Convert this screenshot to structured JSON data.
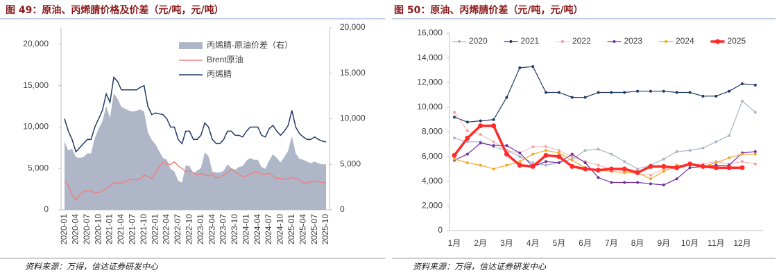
{
  "chart_data": [
    {
      "type": "line",
      "title": "图 49：原油、丙烯腈价格及价差（元/吨，元/吨）",
      "source": "资料来源：万得，信达证券研发中心",
      "categories": [
        "2020-01",
        null,
        null,
        "2020-04",
        null,
        null,
        "2020-07",
        null,
        null,
        "2020-10",
        null,
        null,
        "2021-01",
        null,
        null,
        "2021-04",
        null,
        null,
        "2021-07",
        null,
        null,
        "2021-10",
        null,
        null,
        "2022-01",
        null,
        null,
        "2022-04",
        null,
        null,
        "2022-07",
        null,
        null,
        "2022-10",
        null,
        null,
        "2023-01",
        null,
        null,
        "2023-04",
        null,
        null,
        "2023-07",
        null,
        null,
        "2023-10",
        null,
        null,
        "2024-01",
        null,
        null,
        "2024-04",
        null,
        null,
        "2024-07",
        null,
        null,
        "2024-10",
        null,
        null,
        "2025-01",
        null,
        null,
        "2025-04",
        null,
        null,
        "2025-07",
        null,
        null,
        "2025-10"
      ],
      "ylim": [
        0,
        22000
      ],
      "yticks": [
        0,
        {
          "value": 5000,
          "label": "5,000"
        },
        {
          "value": 10000,
          "label": "10,000"
        },
        {
          "value": 15000,
          "label": "15,000"
        },
        {
          "value": 20000,
          "label": "20,000"
        }
      ],
      "y2lim": [
        0,
        20000
      ],
      "y2ticks": [
        0,
        {
          "value": 5000,
          "label": "5,000"
        },
        {
          "value": 10000,
          "label": "10,000"
        },
        {
          "value": 15000,
          "label": "15,000"
        },
        {
          "value": 20000,
          "label": "20,000"
        }
      ],
      "legend": "upper right",
      "series": [
        {
          "name": "丙烯腈-原油价差（右）",
          "color": "#aeb6c8",
          "axis": "y2",
          "kind": "area",
          "values": [
            7500,
            6500,
            6700,
            5800,
            5700,
            5800,
            6200,
            6200,
            7900,
            8900,
            9700,
            11400,
            10100,
            12800,
            12200,
            11300,
            11100,
            10900,
            10800,
            10900,
            11000,
            10800,
            8500,
            7700,
            7200,
            6400,
            5700,
            5500,
            4500,
            4200,
            3200,
            3000,
            4900,
            4800,
            4000,
            4300,
            4600,
            6300,
            5900,
            4200,
            4100,
            4100,
            4300,
            5000,
            4600,
            4400,
            4700,
            4800,
            5400,
            5700,
            5500,
            5500,
            4700,
            4500,
            5400,
            6100,
            5700,
            5200,
            5800,
            6500,
            8100,
            6200,
            5600,
            5500,
            5300,
            5100,
            5300,
            5100,
            5000,
            5000
          ]
        },
        {
          "name": "Brent原油",
          "color": "#f08080",
          "kind": "line",
          "values": [
            3500,
            3000,
            1800,
            1200,
            1800,
            2200,
            2300,
            2300,
            2100,
            2100,
            2300,
            2600,
            2900,
            3200,
            3300,
            3200,
            3400,
            3600,
            3700,
            3600,
            3800,
            4200,
            4000,
            3800,
            4500,
            5200,
            5800,
            5500,
            5500,
            5800,
            5300,
            5000,
            4600,
            4700,
            4500,
            4200,
            4400,
            4200,
            4100,
            4300,
            3900,
            3900,
            4200,
            4500,
            4900,
            4600,
            4300,
            4000,
            4100,
            4300,
            4500,
            4500,
            4300,
            4300,
            4400,
            4100,
            3800,
            3800,
            3700,
            3700,
            3900,
            3800,
            3600,
            3300,
            3200,
            3400,
            3500,
            3400,
            3300,
            3200
          ]
        },
        {
          "name": "丙烯腈",
          "color": "#1f3864",
          "kind": "line",
          "values": [
            11000,
            9500,
            8500,
            7000,
            7500,
            8000,
            8500,
            8500,
            10000,
            11000,
            12000,
            14000,
            13000,
            16000,
            15500,
            14500,
            14500,
            14500,
            14500,
            14500,
            14800,
            15000,
            12500,
            11500,
            11700,
            11600,
            11500,
            11000,
            10000,
            10000,
            8500,
            8000,
            9500,
            9500,
            8500,
            8500,
            9000,
            10500,
            10000,
            8500,
            8000,
            8000,
            8500,
            9500,
            9500,
            9000,
            9000,
            8800,
            9500,
            10000,
            10000,
            10000,
            9000,
            8800,
            9800,
            10200,
            9500,
            9000,
            9500,
            10200,
            12000,
            10000,
            9200,
            8800,
            8500,
            8500,
            8800,
            8500,
            8300,
            8200
          ]
        }
      ]
    },
    {
      "type": "line",
      "title": "图 50：原油、丙烯腈价差（元/吨，元/吨）",
      "source": "资料来源：万得，信达证券研发中心",
      "categories": [
        "1月",
        null,
        "2月",
        null,
        "3月",
        null,
        "4月",
        null,
        "5月",
        null,
        "6月",
        null,
        "7月",
        null,
        "8月",
        null,
        "9月",
        null,
        "10月",
        null,
        "11月",
        null,
        "12月",
        null
      ],
      "ylim": [
        0,
        16000
      ],
      "yticks": [
        0,
        {
          "value": 2000,
          "label": "2,000"
        },
        {
          "value": 4000,
          "label": "4,000"
        },
        {
          "value": 6000,
          "label": "6,000"
        },
        {
          "value": 8000,
          "label": "8,000"
        },
        {
          "value": 10000,
          "label": "10,000"
        },
        {
          "value": 12000,
          "label": "12,000"
        },
        {
          "value": 14000,
          "label": "14,000"
        },
        {
          "value": 16000,
          "label": "16,000"
        }
      ],
      "legend": "top",
      "series": [
        {
          "name": "2020",
          "color": "#aab4c6",
          "line_width": 1.2,
          "values": [
            7500,
            7200,
            7200,
            6800,
            6500,
            6000,
            5500,
            5300,
            5500,
            5800,
            6500,
            6600,
            6200,
            5600,
            5000,
            5300,
            5800,
            6400,
            6500,
            6700,
            7200,
            7700,
            10500,
            9600
          ]
        },
        {
          "name": "2021",
          "color": "#1f3864",
          "line_width": 1.2,
          "values": [
            9200,
            8800,
            8900,
            9000,
            10800,
            13200,
            13300,
            11200,
            11200,
            10800,
            10800,
            11200,
            11200,
            11200,
            11300,
            11300,
            11300,
            11200,
            11200,
            10900,
            10900,
            11300,
            11900,
            11800
          ]
        },
        {
          "name": "2022",
          "color": "#f4a0a0",
          "line_width": 0.8,
          "values": [
            9600,
            8100,
            7800,
            7200,
            6500,
            6300,
            6800,
            6800,
            6500,
            6000,
            5600,
            5300,
            5000,
            4800,
            4600,
            4500,
            5000,
            5000,
            5300,
            5400,
            5600,
            5400,
            5600,
            5400
          ]
        },
        {
          "name": "2023",
          "color": "#7030a0",
          "line_width": 1.2,
          "values": [
            5700,
            6200,
            7100,
            6900,
            6900,
            6300,
            5200,
            5600,
            5500,
            6200,
            5500,
            4300,
            3900,
            3900,
            3900,
            3800,
            3700,
            4200,
            5100,
            5200,
            5300,
            5300,
            6300,
            6400
          ]
        },
        {
          "name": "2024",
          "color": "#f5a623",
          "line_width": 1.2,
          "values": [
            5800,
            5500,
            5300,
            5000,
            5300,
            5600,
            6200,
            6500,
            6300,
            5700,
            5100,
            4900,
            4800,
            4700,
            4700,
            4200,
            4800,
            5300,
            5300,
            5200,
            5500,
            5900,
            6200,
            6200
          ]
        },
        {
          "name": "2025",
          "color": "#ff2a2a",
          "line_width": 3.5,
          "values": [
            6100,
            7500,
            8500,
            8500,
            6200,
            5300,
            5200,
            6100,
            6000,
            5200,
            5000,
            4900,
            5000,
            5000,
            4700,
            5200,
            5200,
            5100,
            5400,
            5200,
            5100,
            5100,
            5100,
            null
          ]
        }
      ]
    }
  ]
}
